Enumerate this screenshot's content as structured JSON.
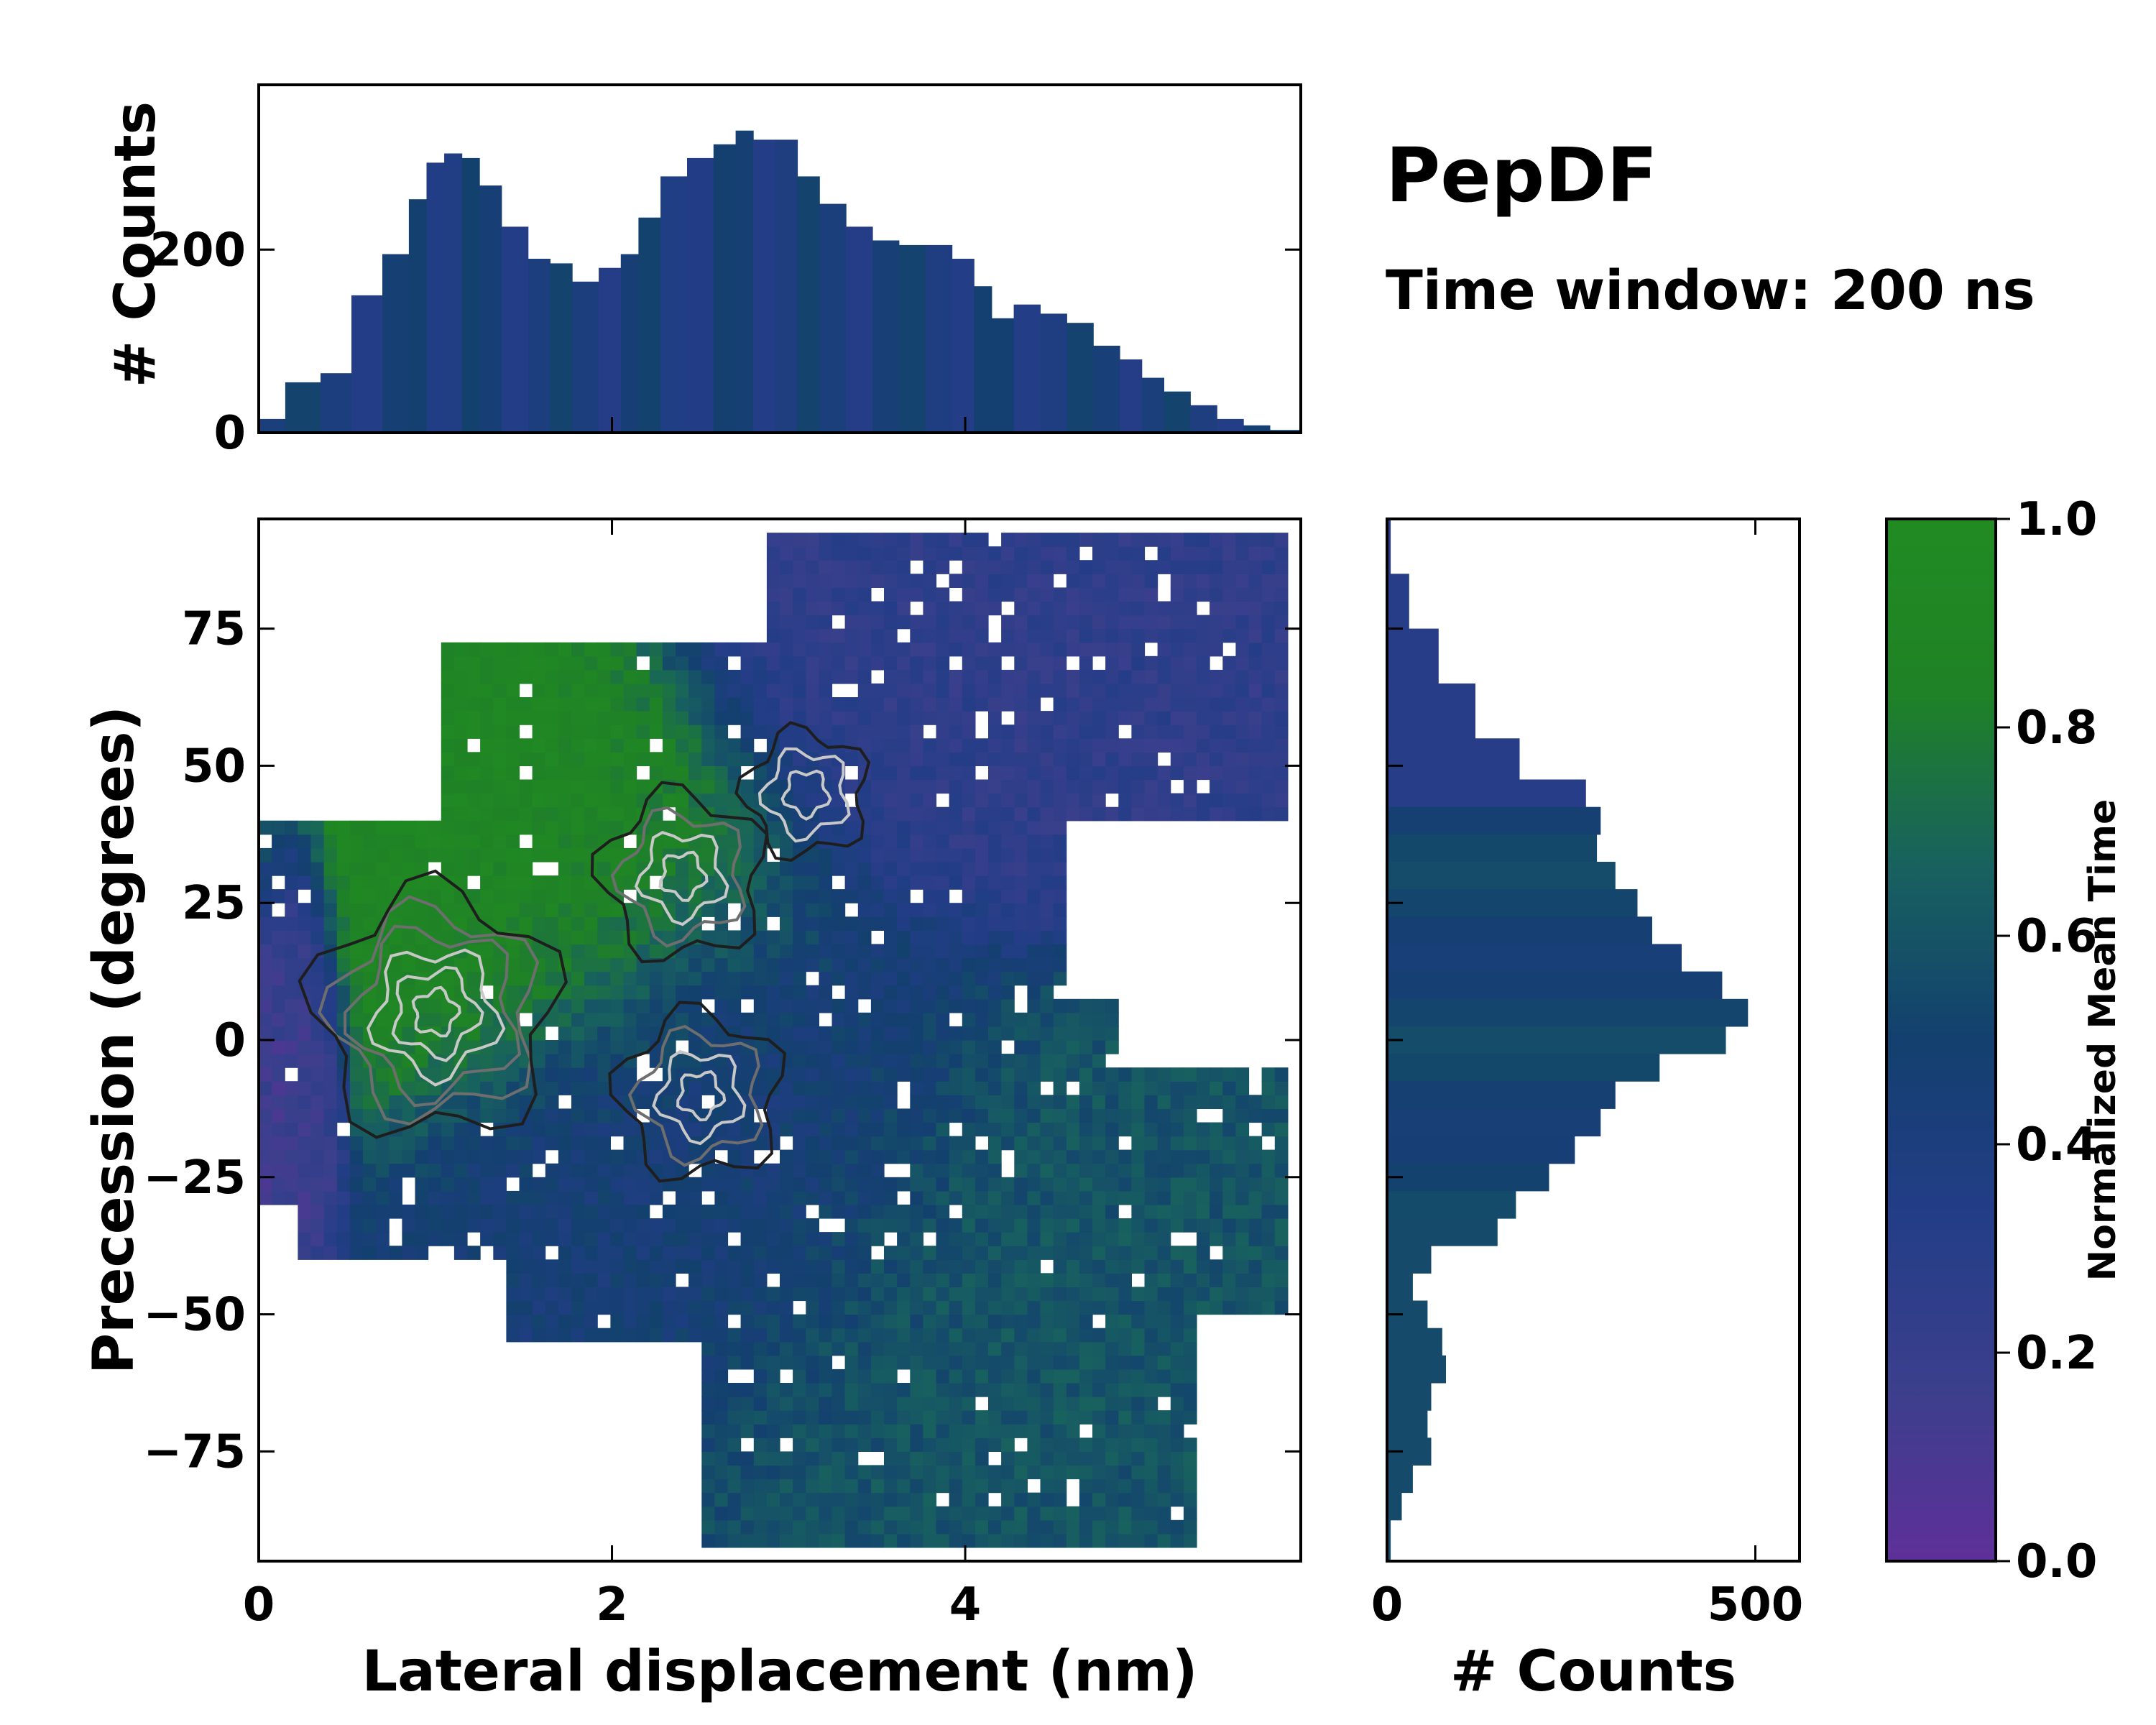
{
  "title": "PepDF",
  "subtitle": "Time window: 200 ns",
  "chart_data": [
    {
      "type": "heatmap",
      "name": "main-2d-histogram",
      "xlabel": "Lateral displacement (nm)",
      "ylabel": "Precession (degrees)",
      "xlim": [
        0,
        5.9
      ],
      "ylim": [
        -95,
        95
      ],
      "xticks": [
        0,
        2,
        4
      ],
      "yticks": [
        -75,
        -50,
        -25,
        0,
        25,
        50,
        75
      ],
      "value_label": "Normalized Mean Time",
      "regions": [
        {
          "name": "upper-left-green",
          "x": [
            0.5,
            2.8
          ],
          "y": [
            0,
            60
          ],
          "mean_time": 0.9
        },
        {
          "name": "left-purple-edge",
          "x": [
            0.0,
            0.4
          ],
          "y": [
            -20,
            30
          ],
          "mean_time": 0.15
        },
        {
          "name": "top-right-purple",
          "x": [
            2.9,
            5.4
          ],
          "y": [
            30,
            90
          ],
          "mean_time": 0.25
        },
        {
          "name": "center-blue",
          "x": [
            1.5,
            3.8
          ],
          "y": [
            -50,
            30
          ],
          "mean_time": 0.45
        },
        {
          "name": "lower-right-teal",
          "x": [
            3.2,
            5.8
          ],
          "y": [
            -90,
            -5
          ],
          "mean_time": 0.6
        }
      ],
      "density_peaks": [
        {
          "x": 1.0,
          "y": 5,
          "level": "high"
        },
        {
          "x": 2.4,
          "y": 30,
          "level": "medium"
        },
        {
          "x": 2.5,
          "y": -10,
          "level": "medium"
        },
        {
          "x": 3.1,
          "y": 45,
          "level": "low"
        }
      ]
    },
    {
      "type": "bar",
      "name": "top-histogram-x",
      "xlabel": "",
      "ylabel": "# Counts",
      "xlim": [
        0,
        5.9
      ],
      "ylim": [
        0,
        380
      ],
      "yticks": [
        0,
        200
      ],
      "x": [
        0.05,
        0.25,
        0.45,
        0.6,
        0.8,
        0.9,
        1.0,
        1.1,
        1.2,
        1.3,
        1.45,
        1.6,
        1.7,
        1.85,
        2.0,
        2.1,
        2.2,
        2.35,
        2.5,
        2.65,
        2.75,
        2.85,
        3.0,
        3.1,
        3.25,
        3.4,
        3.55,
        3.7,
        3.85,
        4.0,
        4.1,
        4.2,
        4.35,
        4.5,
        4.65,
        4.8,
        4.95,
        5.05,
        5.2,
        5.35,
        5.5,
        5.65,
        5.8
      ],
      "values": [
        15,
        55,
        65,
        150,
        195,
        255,
        295,
        305,
        300,
        270,
        225,
        190,
        185,
        165,
        180,
        195,
        235,
        280,
        300,
        315,
        330,
        320,
        320,
        280,
        250,
        225,
        210,
        205,
        205,
        190,
        160,
        125,
        140,
        130,
        120,
        95,
        80,
        60,
        45,
        30,
        15,
        8,
        3
      ]
    },
    {
      "type": "bar",
      "orientation": "horizontal",
      "name": "right-histogram-y",
      "xlabel": "# Counts",
      "ylabel": "",
      "xlim": [
        0,
        560
      ],
      "ylim": [
        -95,
        95
      ],
      "xticks": [
        0,
        500
      ],
      "y": [
        90,
        80,
        70,
        60,
        50,
        45,
        40,
        35,
        30,
        25,
        20,
        15,
        10,
        5,
        0,
        -5,
        -10,
        -15,
        -20,
        -25,
        -30,
        -35,
        -40,
        -45,
        -50,
        -55,
        -60,
        -65,
        -70,
        -75,
        -80,
        -85,
        -90
      ],
      "values": [
        5,
        30,
        70,
        120,
        180,
        270,
        290,
        285,
        310,
        340,
        360,
        400,
        455,
        490,
        460,
        370,
        310,
        290,
        255,
        220,
        175,
        150,
        60,
        35,
        55,
        75,
        80,
        60,
        55,
        60,
        35,
        20,
        5
      ]
    },
    {
      "type": "colorbar",
      "name": "time-colorbar",
      "label": "Normalized Mean Time",
      "range": [
        0.0,
        1.0
      ],
      "ticks": [
        0.0,
        0.2,
        0.4,
        0.6,
        0.8,
        1.0
      ],
      "tick_labels": [
        "0.0",
        "0.2",
        "0.4",
        "0.6",
        "0.8",
        "1.0"
      ],
      "colormap": [
        "#5e3099",
        "#3b3f8c",
        "#233d87",
        "#13406f",
        "#18615f",
        "#1f8226",
        "#218b22"
      ]
    }
  ]
}
